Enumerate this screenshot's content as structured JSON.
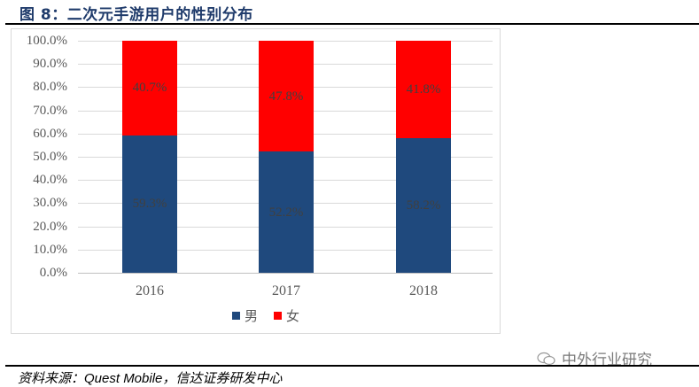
{
  "header": {
    "title": "图 8：二次元手游用户的性别分布"
  },
  "chart_data": {
    "type": "bar",
    "stacked": true,
    "percent_stacked": true,
    "title": "二次元手游用户的性别分布",
    "categories": [
      "2016",
      "2017",
      "2018"
    ],
    "series": [
      {
        "name": "男",
        "color": "#1F497D",
        "values": [
          59.3,
          52.2,
          58.2
        ],
        "labels": [
          "59.3%",
          "52.2%",
          "58.2%"
        ]
      },
      {
        "name": "女",
        "color": "#FF0000",
        "values": [
          40.7,
          47.8,
          41.8
        ],
        "labels": [
          "40.7%",
          "47.8%",
          "41.8%"
        ]
      }
    ],
    "xlabel": "",
    "ylabel": "",
    "ylim": [
      0,
      100
    ],
    "yticks": [
      "100.0%",
      "90.0%",
      "80.0%",
      "70.0%",
      "60.0%",
      "50.0%",
      "40.0%",
      "30.0%",
      "20.0%",
      "10.0%",
      "0.0%"
    ],
    "grid": true,
    "legend_position": "bottom"
  },
  "legend": {
    "male": "男",
    "female": "女"
  },
  "watermark": {
    "text": "中外行业研究"
  },
  "source": {
    "text": "资料来源：Quest Mobile，信达证券研发中心"
  }
}
